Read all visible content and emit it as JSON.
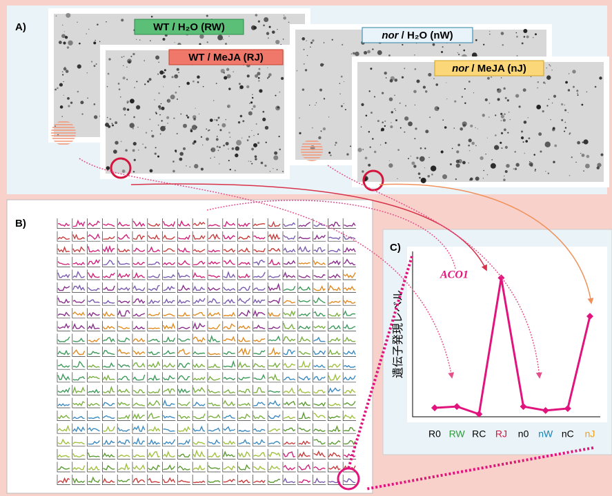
{
  "panels": {
    "a": "A)",
    "b": "B)",
    "c": "C)"
  },
  "array_labels": [
    {
      "parts": [
        "WT / H₂O (RW)"
      ]
    },
    {
      "parts": [
        "WT / MeJA (RJ)"
      ]
    },
    {
      "parts": [
        "nor",
        " / H₂O (nW)"
      ]
    },
    {
      "parts": [
        "nor",
        " / MeJA (nJ)"
      ]
    }
  ],
  "chart_data": {
    "type": "line",
    "annotation": "ACO1",
    "y_label": "遺伝子発現レベル",
    "categories": [
      "R0",
      "RW",
      "RC",
      "RJ",
      "n0",
      "nW",
      "nC",
      "nJ"
    ],
    "category_colors": [
      "#000000",
      "#2e9a3c",
      "#000000",
      "#d4143c",
      "#000000",
      "#1c7fb5",
      "#000000",
      "#f0a020"
    ],
    "values": [
      0.27,
      0.31,
      0.08,
      4.2,
      0.31,
      0.19,
      0.25,
      3.04
    ],
    "color": "#e0147c",
    "ylim": [
      0,
      5
    ]
  }
}
